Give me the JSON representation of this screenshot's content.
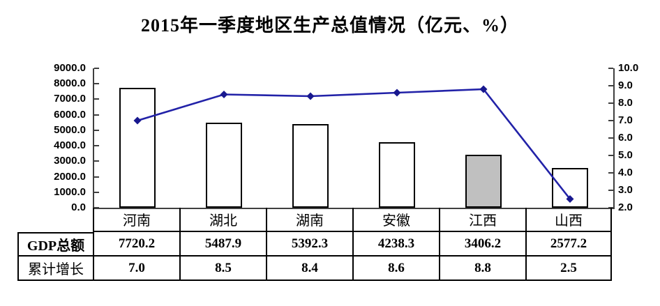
{
  "title": "2015年一季度地区生产总值情况（亿元、%）",
  "chart_data": {
    "type": "bar",
    "subtype": "combo-bar-line-with-data-table",
    "title": "2015年一季度地区生产总值情况（亿元、%）",
    "categories": [
      "河南",
      "湖北",
      "湖南",
      "安徽",
      "江西",
      "山西"
    ],
    "category_slugs": [
      "henan",
      "hubei",
      "hunan",
      "anhui",
      "jiangxi",
      "shanxi"
    ],
    "series": [
      {
        "name": "GDP总额",
        "type": "bar",
        "axis": "left",
        "values": [
          7720.2,
          5487.9,
          5392.3,
          4238.3,
          3406.2,
          2577.2
        ]
      },
      {
        "name": "累计增长",
        "type": "line",
        "axis": "right",
        "values": [
          7.0,
          8.5,
          8.4,
          8.6,
          8.8,
          2.5
        ]
      }
    ],
    "left_axis": {
      "min": 0,
      "max": 9000,
      "step": 1000,
      "decimals": 1
    },
    "right_axis": {
      "min": 2.0,
      "max": 10.0,
      "step": 1.0,
      "decimals": 1
    },
    "grid": false,
    "legend_position": "none",
    "highlight_category": "江西",
    "colors": {
      "bar_fill_default": "#FFFFFF",
      "bar_fill_highlight": "#C0C0C0",
      "bar_border": "#000000",
      "line": "#2222A8",
      "marker": "#18188F",
      "axis_line": "#3F3F3F",
      "table_border": "#000000"
    }
  }
}
